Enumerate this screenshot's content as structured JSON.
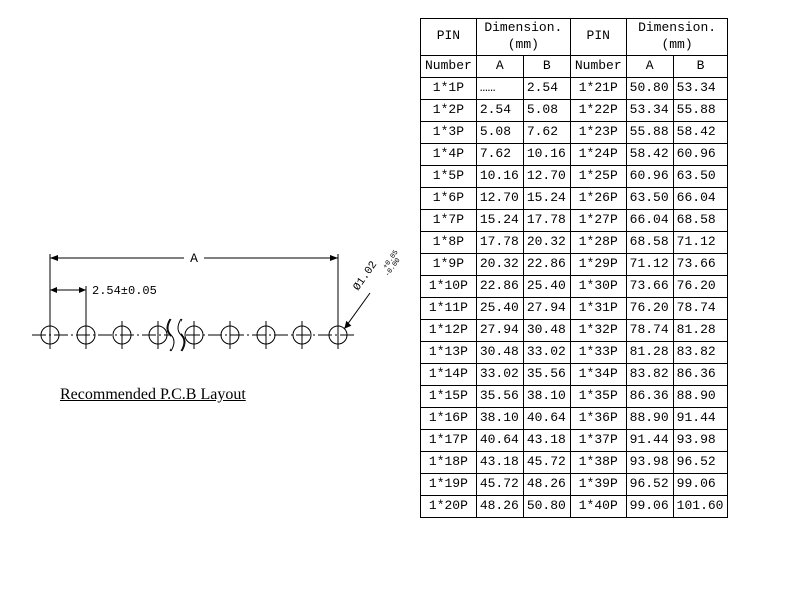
{
  "diagram": {
    "caption": "Recommended  P.C.B  Layout",
    "dim_A_label": "A",
    "pitch_label": "2.54±0.05",
    "hole_label": "Ø1.02",
    "hole_tol_upper": "+0.05",
    "hole_tol_lower": "-0.00",
    "circle_radius": 9,
    "circle_count": 9,
    "break_after_index": 3,
    "stroke_color": "#000000",
    "line_width": 1
  },
  "table": {
    "pin_header": "PIN",
    "number_header": "Number",
    "dimension_header": "Dimension.(mm)",
    "col_A": "A",
    "col_B": "B",
    "font_size": 13,
    "border_color": "#000000",
    "left_rows": [
      {
        "pin": "1*1P",
        "a": "……",
        "b": "2.54"
      },
      {
        "pin": "1*2P",
        "a": "2.54",
        "b": "5.08"
      },
      {
        "pin": "1*3P",
        "a": "5.08",
        "b": "7.62"
      },
      {
        "pin": "1*4P",
        "a": "7.62",
        "b": "10.16"
      },
      {
        "pin": "1*5P",
        "a": "10.16",
        "b": "12.70"
      },
      {
        "pin": "1*6P",
        "a": "12.70",
        "b": "15.24"
      },
      {
        "pin": "1*7P",
        "a": "15.24",
        "b": "17.78"
      },
      {
        "pin": "1*8P",
        "a": "17.78",
        "b": "20.32"
      },
      {
        "pin": "1*9P",
        "a": "20.32",
        "b": "22.86"
      },
      {
        "pin": "1*10P",
        "a": "22.86",
        "b": "25.40"
      },
      {
        "pin": "1*11P",
        "a": "25.40",
        "b": "27.94"
      },
      {
        "pin": "1*12P",
        "a": "27.94",
        "b": "30.48"
      },
      {
        "pin": "1*13P",
        "a": "30.48",
        "b": "33.02"
      },
      {
        "pin": "1*14P",
        "a": "33.02",
        "b": "35.56"
      },
      {
        "pin": "1*15P",
        "a": "35.56",
        "b": "38.10"
      },
      {
        "pin": "1*16P",
        "a": "38.10",
        "b": "40.64"
      },
      {
        "pin": "1*17P",
        "a": "40.64",
        "b": "43.18"
      },
      {
        "pin": "1*18P",
        "a": "43.18",
        "b": "45.72"
      },
      {
        "pin": "1*19P",
        "a": "45.72",
        "b": "48.26"
      },
      {
        "pin": "1*20P",
        "a": "48.26",
        "b": "50.80"
      }
    ],
    "right_rows": [
      {
        "pin": "1*21P",
        "a": "50.80",
        "b": "53.34"
      },
      {
        "pin": "1*22P",
        "a": "53.34",
        "b": "55.88"
      },
      {
        "pin": "1*23P",
        "a": "55.88",
        "b": "58.42"
      },
      {
        "pin": "1*24P",
        "a": "58.42",
        "b": "60.96"
      },
      {
        "pin": "1*25P",
        "a": "60.96",
        "b": "63.50"
      },
      {
        "pin": "1*26P",
        "a": "63.50",
        "b": "66.04"
      },
      {
        "pin": "1*27P",
        "a": "66.04",
        "b": "68.58"
      },
      {
        "pin": "1*28P",
        "a": "68.58",
        "b": "71.12"
      },
      {
        "pin": "1*29P",
        "a": "71.12",
        "b": "73.66"
      },
      {
        "pin": "1*30P",
        "a": "73.66",
        "b": "76.20"
      },
      {
        "pin": "1*31P",
        "a": "76.20",
        "b": "78.74"
      },
      {
        "pin": "1*32P",
        "a": "78.74",
        "b": "81.28"
      },
      {
        "pin": "1*33P",
        "a": "81.28",
        "b": "83.82"
      },
      {
        "pin": "1*34P",
        "a": "83.82",
        "b": "86.36"
      },
      {
        "pin": "1*35P",
        "a": "86.36",
        "b": "88.90"
      },
      {
        "pin": "1*36P",
        "a": "88.90",
        "b": "91.44"
      },
      {
        "pin": "1*37P",
        "a": "91.44",
        "b": "93.98"
      },
      {
        "pin": "1*38P",
        "a": "93.98",
        "b": "96.52"
      },
      {
        "pin": "1*39P",
        "a": "96.52",
        "b": "99.06"
      },
      {
        "pin": "1*40P",
        "a": "99.06",
        "b": "101.60"
      }
    ]
  }
}
